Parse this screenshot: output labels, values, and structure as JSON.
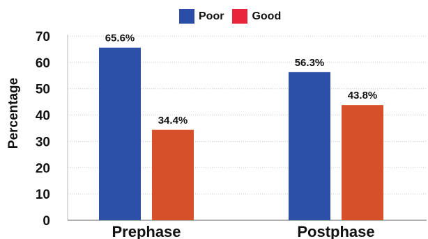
{
  "chart_data": {
    "type": "bar",
    "categories": [
      "Prephase",
      "Postphase"
    ],
    "series": [
      {
        "name": "Poor",
        "values": [
          65.6,
          56.3
        ],
        "labels": [
          "65.6%",
          "56.3%"
        ],
        "legend_color": "#2a4ea8",
        "bar_color": "#2c4fa7"
      },
      {
        "name": "Good",
        "values": [
          34.4,
          43.8
        ],
        "labels": [
          "34.4%",
          "43.8%"
        ],
        "legend_color": "#e8253a",
        "bar_color": "#d6502a"
      }
    ],
    "ylabel": "Percentage",
    "ylim": [
      0,
      70
    ],
    "yticks": [
      "0",
      "10",
      "20",
      "30",
      "40",
      "50",
      "60",
      "70"
    ],
    "grid": true,
    "legend_position": "top-center"
  }
}
